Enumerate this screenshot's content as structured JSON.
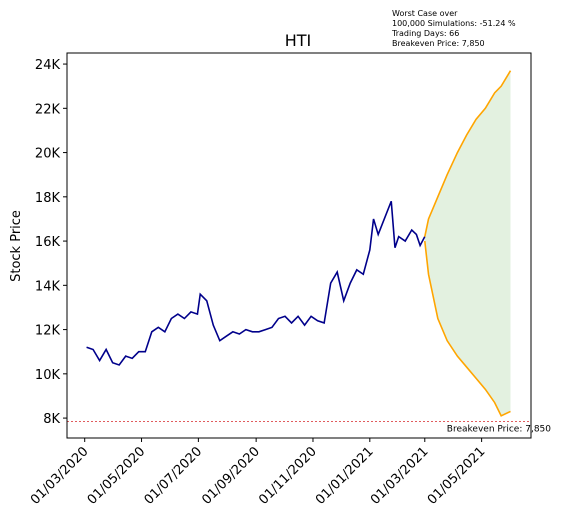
{
  "chart_data": {
    "type": "line",
    "title": "HTI",
    "y_label": "Stock Price",
    "annotation": [
      "Worst Case over",
      "100,000 Simulations: -51.24 %",
      "Trading Days: 66",
      "Breakeven Price: 7,850"
    ],
    "xlim": [
      "2020-02-11",
      "2021-06-23"
    ],
    "ylim": [
      7100,
      24500
    ],
    "xticks": [
      {
        "value": "2020-03-01",
        "label": "01/03/2020"
      },
      {
        "value": "2020-05-01",
        "label": "01/05/2020"
      },
      {
        "value": "2020-07-01",
        "label": "01/07/2020"
      },
      {
        "value": "2020-09-01",
        "label": "01/09/2020"
      },
      {
        "value": "2020-11-01",
        "label": "01/11/2020"
      },
      {
        "value": "2021-01-01",
        "label": "01/01/2021"
      },
      {
        "value": "2021-03-01",
        "label": "01/03/2021"
      },
      {
        "value": "2021-05-01",
        "label": "01/05/2021"
      }
    ],
    "yticks": [
      {
        "value": 8000,
        "label": "8K"
      },
      {
        "value": 10000,
        "label": "10K"
      },
      {
        "value": 12000,
        "label": "12K"
      },
      {
        "value": 14000,
        "label": "14K"
      },
      {
        "value": 16000,
        "label": "16K"
      },
      {
        "value": 18000,
        "label": "18K"
      },
      {
        "value": 20000,
        "label": "20K"
      },
      {
        "value": 22000,
        "label": "22K"
      },
      {
        "value": 24000,
        "label": "24K"
      }
    ],
    "series": [
      {
        "color": "#00008b",
        "x": [
          "2020-03-03",
          "2020-03-10",
          "2020-03-17",
          "2020-03-24",
          "2020-03-31",
          "2020-04-07",
          "2020-04-14",
          "2020-04-21",
          "2020-04-28",
          "2020-05-05",
          "2020-05-12",
          "2020-05-19",
          "2020-05-26",
          "2020-06-02",
          "2020-06-09",
          "2020-06-16",
          "2020-06-23",
          "2020-06-30",
          "2020-07-03",
          "2020-07-10",
          "2020-07-17",
          "2020-07-24",
          "2020-07-31",
          "2020-08-07",
          "2020-08-14",
          "2020-08-21",
          "2020-08-28",
          "2020-09-04",
          "2020-09-11",
          "2020-09-18",
          "2020-09-25",
          "2020-10-02",
          "2020-10-09",
          "2020-10-16",
          "2020-10-23",
          "2020-10-30",
          "2020-11-06",
          "2020-11-13",
          "2020-11-20",
          "2020-11-27",
          "2020-12-04",
          "2020-12-11",
          "2020-12-18",
          "2020-12-25",
          "2021-01-01",
          "2021-01-05",
          "2021-01-10",
          "2021-01-24",
          "2021-01-28",
          "2021-02-01",
          "2021-02-08",
          "2021-02-15",
          "2021-02-20",
          "2021-02-24",
          "2021-03-01"
        ],
        "values": [
          11200,
          11100,
          10600,
          11100,
          10500,
          10400,
          10800,
          10700,
          11000,
          11000,
          11900,
          12100,
          11900,
          12500,
          12700,
          12500,
          12800,
          12700,
          13600,
          13300,
          12200,
          11500,
          11700,
          11900,
          11800,
          12000,
          11900,
          11900,
          12000,
          12100,
          12500,
          12600,
          12300,
          12600,
          12200,
          12600,
          12400,
          12300,
          14100,
          14600,
          13300,
          14100,
          14700,
          14500,
          15600,
          17000,
          16300,
          17800,
          15700,
          16200,
          16000,
          16500,
          16300,
          15800,
          16200
        ]
      },
      {
        "color": "#ffa500",
        "x": [
          "2021-03-01",
          "2021-03-05",
          "2021-03-10",
          "2021-03-15",
          "2021-03-25",
          "2021-04-05",
          "2021-04-15",
          "2021-04-25",
          "2021-05-05",
          "2021-05-15",
          "2021-05-22",
          "2021-06-01"
        ],
        "values": [
          16200,
          17000,
          17500,
          18000,
          19000,
          20000,
          20800,
          21500,
          22000,
          22700,
          23000,
          23700
        ]
      },
      {
        "color": "#ffa500",
        "x": [
          "2021-03-01",
          "2021-03-05",
          "2021-03-10",
          "2021-03-15",
          "2021-03-25",
          "2021-04-05",
          "2021-04-15",
          "2021-04-25",
          "2021-05-05",
          "2021-05-15",
          "2021-05-22",
          "2021-06-01"
        ],
        "values": [
          16000,
          14500,
          13500,
          12500,
          11500,
          10800,
          10300,
          9800,
          9300,
          8700,
          8100,
          8300
        ]
      }
    ],
    "fill_color": "#e3f1e0",
    "breakeven": {
      "value": 7850,
      "label": "Breakeven Price: 7,850",
      "color": "#d62728"
    }
  }
}
